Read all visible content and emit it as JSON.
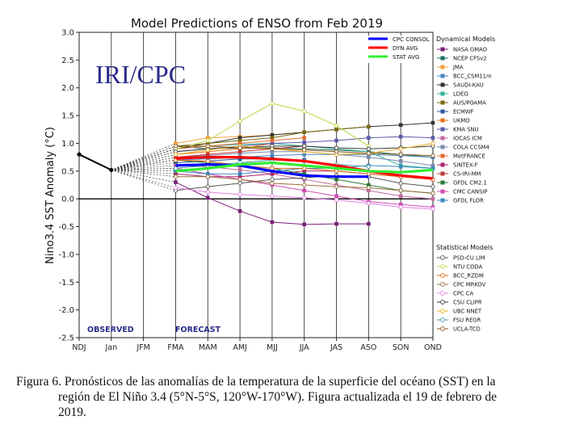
{
  "chart_data": {
    "type": "line",
    "title": "Model Predictions of ENSO from Feb 2019",
    "watermark": "IRI/CPC",
    "ylabel": "Nino3.4 SST Anomaly (°C)",
    "ylim": [
      -2.5,
      3.0
    ],
    "yticks": [
      "3.0",
      "2.5",
      "2.0",
      "1.5",
      "1.0",
      "0.5",
      "0.0",
      "-0.5",
      "-1.0",
      "-1.5",
      "-2.0",
      "-2.5"
    ],
    "categories": [
      "NDJ",
      "Jan",
      "JFM",
      "FMA",
      "MAM",
      "AMJ",
      "MJJ",
      "JJA",
      "JAS",
      "ASO",
      "SON",
      "OND"
    ],
    "zero_line": true,
    "section_labels": {
      "observed": "OBSERVED",
      "forecast": "FORECAST"
    },
    "observed": {
      "x": [
        "NDJ",
        "Jan"
      ],
      "values": [
        0.8,
        0.52
      ],
      "color": "#000000"
    },
    "averages": [
      {
        "name": "CPC CONSOL",
        "color": "#0000ff",
        "start": 3,
        "values": [
          0.6,
          0.62,
          0.6,
          0.5,
          0.42,
          0.4,
          0.4,
          null,
          null
        ]
      },
      {
        "name": "DYN AVG",
        "color": "#ff0000",
        "start": 3,
        "values": [
          0.73,
          0.75,
          0.75,
          0.72,
          0.68,
          0.6,
          0.5,
          0.42,
          0.37
        ]
      },
      {
        "name": "STAT AVG",
        "color": "#33ee33",
        "start": 3,
        "values": [
          0.5,
          0.55,
          0.62,
          0.65,
          0.6,
          0.55,
          0.5,
          0.48,
          0.52
        ]
      }
    ],
    "legend_headers": {
      "dynamical": "Dynamical Models",
      "statistical": "Statistical Models"
    },
    "dynamical_models": [
      {
        "name": "NASA GMAO",
        "color": "#7b1f7b",
        "start": 3,
        "values": [
          0.3,
          0.02,
          -0.22,
          -0.42,
          -0.46,
          -0.45,
          -0.45
        ]
      },
      {
        "name": "NCEP CFSv2",
        "color": "#1f6f5f",
        "start": 3,
        "values": [
          0.95,
          0.9,
          0.92,
          0.92,
          0.9,
          0.88,
          0.85,
          0.8,
          0.75
        ]
      },
      {
        "name": "JMA",
        "color": "#f2a340",
        "start": 3,
        "values": [
          1.0,
          1.1,
          1.12,
          1.15,
          1.2,
          null,
          null,
          null,
          null
        ]
      },
      {
        "name": "BCC_CSM11m",
        "color": "#4a86c8",
        "start": 3,
        "values": [
          0.7,
          0.72,
          0.75,
          0.78,
          0.8,
          0.8,
          0.8,
          0.78,
          0.75
        ]
      },
      {
        "name": "SAUDI-KAU",
        "color": "#333333",
        "start": 3,
        "values": [
          0.9,
          1.0,
          1.1,
          1.15,
          1.2,
          1.25,
          1.3,
          1.33,
          1.37
        ]
      },
      {
        "name": "LDEO",
        "color": "#2fb39a",
        "start": 3,
        "values": [
          0.9,
          0.95,
          0.98,
          1.0,
          0.95,
          0.9,
          0.85,
          0.6,
          0.55
        ]
      },
      {
        "name": "AUS/POAMA",
        "color": "#7a6a10",
        "start": 3,
        "values": [
          0.95,
          1.0,
          1.05,
          1.1,
          1.2,
          1.25,
          1.3,
          null,
          null
        ]
      },
      {
        "name": "ECMWF",
        "color": "#2a5a9a",
        "start": 3,
        "values": [
          0.65,
          0.68,
          0.72,
          0.72,
          0.7,
          null,
          null,
          null,
          null
        ]
      },
      {
        "name": "UKMO",
        "color": "#e8741a",
        "start": 3,
        "values": [
          0.8,
          0.85,
          0.9,
          1.0,
          null,
          null,
          null,
          null,
          null
        ]
      },
      {
        "name": "KMA SNU",
        "color": "#5a5aaa",
        "start": 3,
        "values": [
          0.85,
          0.9,
          0.95,
          1.0,
          1.02,
          1.05,
          1.1,
          1.12,
          1.1
        ]
      },
      {
        "name": "IOCAS ICM",
        "color": "#c06aa0",
        "start": 3,
        "values": [
          0.6,
          0.58,
          0.52,
          0.45,
          0.35,
          0.25,
          0.15,
          0.05,
          0.0
        ]
      },
      {
        "name": "COLA CCSM4",
        "color": "#7a8ab0",
        "start": 3,
        "values": [
          0.75,
          0.78,
          0.82,
          0.85,
          0.85,
          0.8,
          0.75,
          0.68,
          0.6
        ]
      },
      {
        "name": "MetFRANCE",
        "color": "#e86a30",
        "start": 3,
        "values": [
          0.9,
          0.95,
          1.0,
          1.05,
          1.1,
          null,
          null,
          null,
          null
        ]
      },
      {
        "name": "SINTEX-F",
        "color": "#b0206a",
        "start": 3,
        "values": [
          0.45,
          0.4,
          0.4,
          0.45,
          0.5,
          0.5,
          0.45,
          0.4,
          0.35
        ]
      },
      {
        "name": "CS-IRI-MM",
        "color": "#c03838",
        "start": 3,
        "values": [
          0.75,
          0.8,
          0.85,
          0.9,
          0.95,
          null,
          null,
          null,
          null
        ]
      },
      {
        "name": "GFDL CM2.1",
        "color": "#2a7a3a",
        "start": 3,
        "values": [
          0.7,
          0.65,
          0.6,
          0.55,
          0.45,
          0.35,
          0.25,
          0.15,
          0.1
        ]
      },
      {
        "name": "CMC CANSIP",
        "color": "#d04ab0",
        "start": 3,
        "values": [
          0.55,
          0.45,
          0.35,
          0.25,
          0.15,
          0.05,
          -0.05,
          -0.1,
          -0.15
        ]
      },
      {
        "name": "GFDL FLOR",
        "color": "#3a8ac0",
        "start": 3,
        "values": [
          0.5,
          0.45,
          0.45,
          0.5,
          0.55,
          0.55,
          0.6,
          0.58,
          0.55
        ]
      }
    ],
    "statistical_models": [
      {
        "name": "PSD-CU LIM",
        "color": "#555555",
        "start": 3,
        "values": [
          0.15,
          0.22,
          0.28,
          0.35,
          0.38,
          0.42,
          0.4,
          0.28,
          0.22
        ]
      },
      {
        "name": "NTU CODA",
        "color": "#b8d840",
        "start": 3,
        "values": [
          0.9,
          1.05,
          1.4,
          1.72,
          1.58,
          1.32,
          0.95,
          null,
          null
        ]
      },
      {
        "name": "BCC_RZDM",
        "color": "#e06a10",
        "start": 3,
        "values": [
          0.7,
          0.68,
          0.6,
          0.55,
          0.55,
          0.5,
          0.45,
          0.4,
          0.35
        ]
      },
      {
        "name": "CPC MRKOV",
        "color": "#9a6a3a",
        "start": 3,
        "values": [
          0.4,
          0.4,
          0.35,
          0.28,
          0.25,
          0.22,
          0.2,
          0.15,
          0.1
        ]
      },
      {
        "name": "CPC CA",
        "color": "#e080e0",
        "start": 3,
        "values": [
          0.2,
          0.12,
          0.08,
          0.05,
          0.02,
          -0.02,
          -0.08,
          -0.15,
          -0.18
        ]
      },
      {
        "name": "CSU CLIPR",
        "color": "#3a3a3a",
        "start": 3,
        "values": [
          0.85,
          0.9,
          0.92,
          0.95,
          0.95,
          0.92,
          0.9,
          0.92,
          0.95
        ]
      },
      {
        "name": "UBC NNET",
        "color": "#e8b020",
        "start": 3,
        "values": [
          0.8,
          0.88,
          0.95,
          0.9,
          0.85,
          0.8,
          0.82,
          0.9,
          1.0
        ]
      },
      {
        "name": "FSU REGR",
        "color": "#4a9aaa",
        "start": 3,
        "values": [
          0.55,
          0.6,
          0.65,
          0.7,
          0.68,
          0.62,
          0.58,
          null,
          null
        ]
      },
      {
        "name": "UCLA-TCD",
        "color": "#8a5a1a",
        "start": 3,
        "values": [
          0.95,
          0.95,
          0.92,
          0.9,
          0.88,
          0.85,
          0.82,
          0.8,
          0.78
        ]
      }
    ]
  },
  "caption": {
    "line1": "Figura 6. Pronósticos de las anomalías de la temperatura de la superficie del océano (SST) en la",
    "line2": "región de El Niño 3.4 (5°N-5°S, 120°W-170°W). Figura actualizada el 19 de febrero de",
    "line3": "2019."
  }
}
